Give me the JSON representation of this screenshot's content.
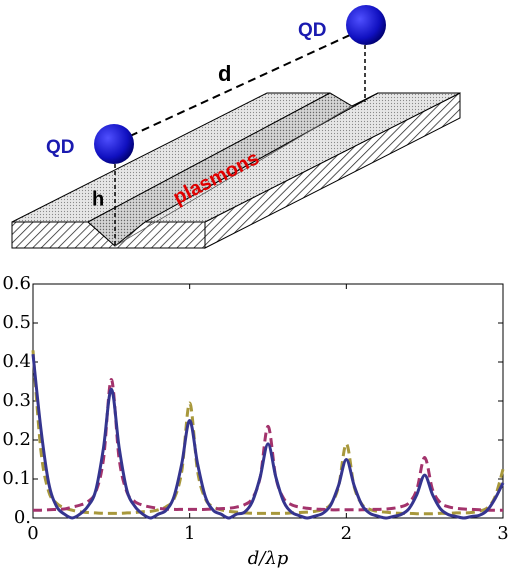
{
  "diagram": {
    "qd_left": "QD",
    "qd_right": "QD",
    "distance_label": "d",
    "height_label": "h",
    "groove_label": "plasmons"
  },
  "chart_data": {
    "type": "line",
    "x": [
      0,
      0.05,
      0.1,
      0.15,
      0.2,
      0.25,
      0.3,
      0.35,
      0.4,
      0.45,
      0.5,
      0.55,
      0.6,
      0.65,
      0.7,
      0.75,
      0.8,
      0.85,
      0.9,
      0.95,
      1,
      1.05,
      1.1,
      1.15,
      1.2,
      1.25,
      1.3,
      1.35,
      1.4,
      1.45,
      1.5,
      1.55,
      1.6,
      1.65,
      1.7,
      1.75,
      1.8,
      1.85,
      1.9,
      1.95,
      2,
      2.05,
      2.1,
      2.15,
      2.2,
      2.25,
      2.3,
      2.35,
      2.4,
      2.45,
      2.5,
      2.55,
      2.6,
      2.65,
      2.7,
      2.75,
      2.8,
      2.85,
      2.9,
      2.95,
      3
    ],
    "xlabel": "d/λp",
    "series": [
      {
        "color": "#a8983c",
        "linestyle": "dashed",
        "values": [
          0.43,
          0.174,
          0.068,
          0.038,
          0.026,
          0.02,
          0.016,
          0.014,
          0.013,
          0.012,
          0.012,
          0.012,
          0.013,
          0.014,
          0.016,
          0.017,
          0.021,
          0.029,
          0.049,
          0.121,
          0.295,
          0.121,
          0.049,
          0.029,
          0.021,
          0.017,
          0.015,
          0.013,
          0.012,
          0.012,
          0.012,
          0.012,
          0.012,
          0.013,
          0.014,
          0.015,
          0.017,
          0.022,
          0.035,
          0.08,
          0.19,
          0.08,
          0.035,
          0.022,
          0.017,
          0.015,
          0.013,
          0.012,
          0.012,
          0.011,
          0.011,
          0.011,
          0.012,
          0.012,
          0.013,
          0.013,
          0.014,
          0.018,
          0.026,
          0.055,
          0.125
        ]
      },
      {
        "color": "#a3336c",
        "linestyle": "dashed",
        "values": [
          0.02,
          0.02,
          0.021,
          0.022,
          0.023,
          0.028,
          0.033,
          0.042,
          0.066,
          0.151,
          0.355,
          0.151,
          0.066,
          0.042,
          0.033,
          0.028,
          0.025,
          0.023,
          0.022,
          0.022,
          0.022,
          0.022,
          0.022,
          0.023,
          0.024,
          0.025,
          0.028,
          0.034,
          0.05,
          0.104,
          0.235,
          0.104,
          0.05,
          0.034,
          0.028,
          0.025,
          0.023,
          0.022,
          0.021,
          0.021,
          0.021,
          0.021,
          0.021,
          0.022,
          0.022,
          0.023,
          0.025,
          0.029,
          0.039,
          0.073,
          0.155,
          0.073,
          0.039,
          0.029,
          0.025,
          0.023,
          0.022,
          0.021,
          0.02,
          0.02,
          0.02
        ]
      },
      {
        "color": "#35358f",
        "linestyle": "solid",
        "values": [
          0.42,
          0.23,
          0.09,
          0.03,
          0.01,
          0,
          0.01,
          0.03,
          0.07,
          0.18,
          0.33,
          0.18,
          0.07,
          0.03,
          0.01,
          0,
          0.01,
          0.02,
          0.055,
          0.14,
          0.25,
          0.14,
          0.055,
          0.02,
          0.01,
          0,
          0.01,
          0.015,
          0.042,
          0.105,
          0.19,
          0.105,
          0.042,
          0.015,
          0.006,
          0,
          0.005,
          0.012,
          0.033,
          0.083,
          0.15,
          0.083,
          0.033,
          0.012,
          0.005,
          0,
          0.004,
          0.009,
          0.024,
          0.06,
          0.11,
          0.06,
          0.024,
          0.009,
          0.004,
          0,
          0.004,
          0.007,
          0.02,
          0.05,
          0.09
        ]
      }
    ],
    "xlim": [
      0,
      3
    ],
    "xticks": [
      0,
      1,
      2,
      3
    ],
    "ylim": [
      0,
      0.6
    ],
    "yticks": [
      {
        "value": 0,
        "label": "0."
      },
      0.1,
      0.2,
      0.3,
      0.4,
      0.5,
      0.6
    ]
  }
}
